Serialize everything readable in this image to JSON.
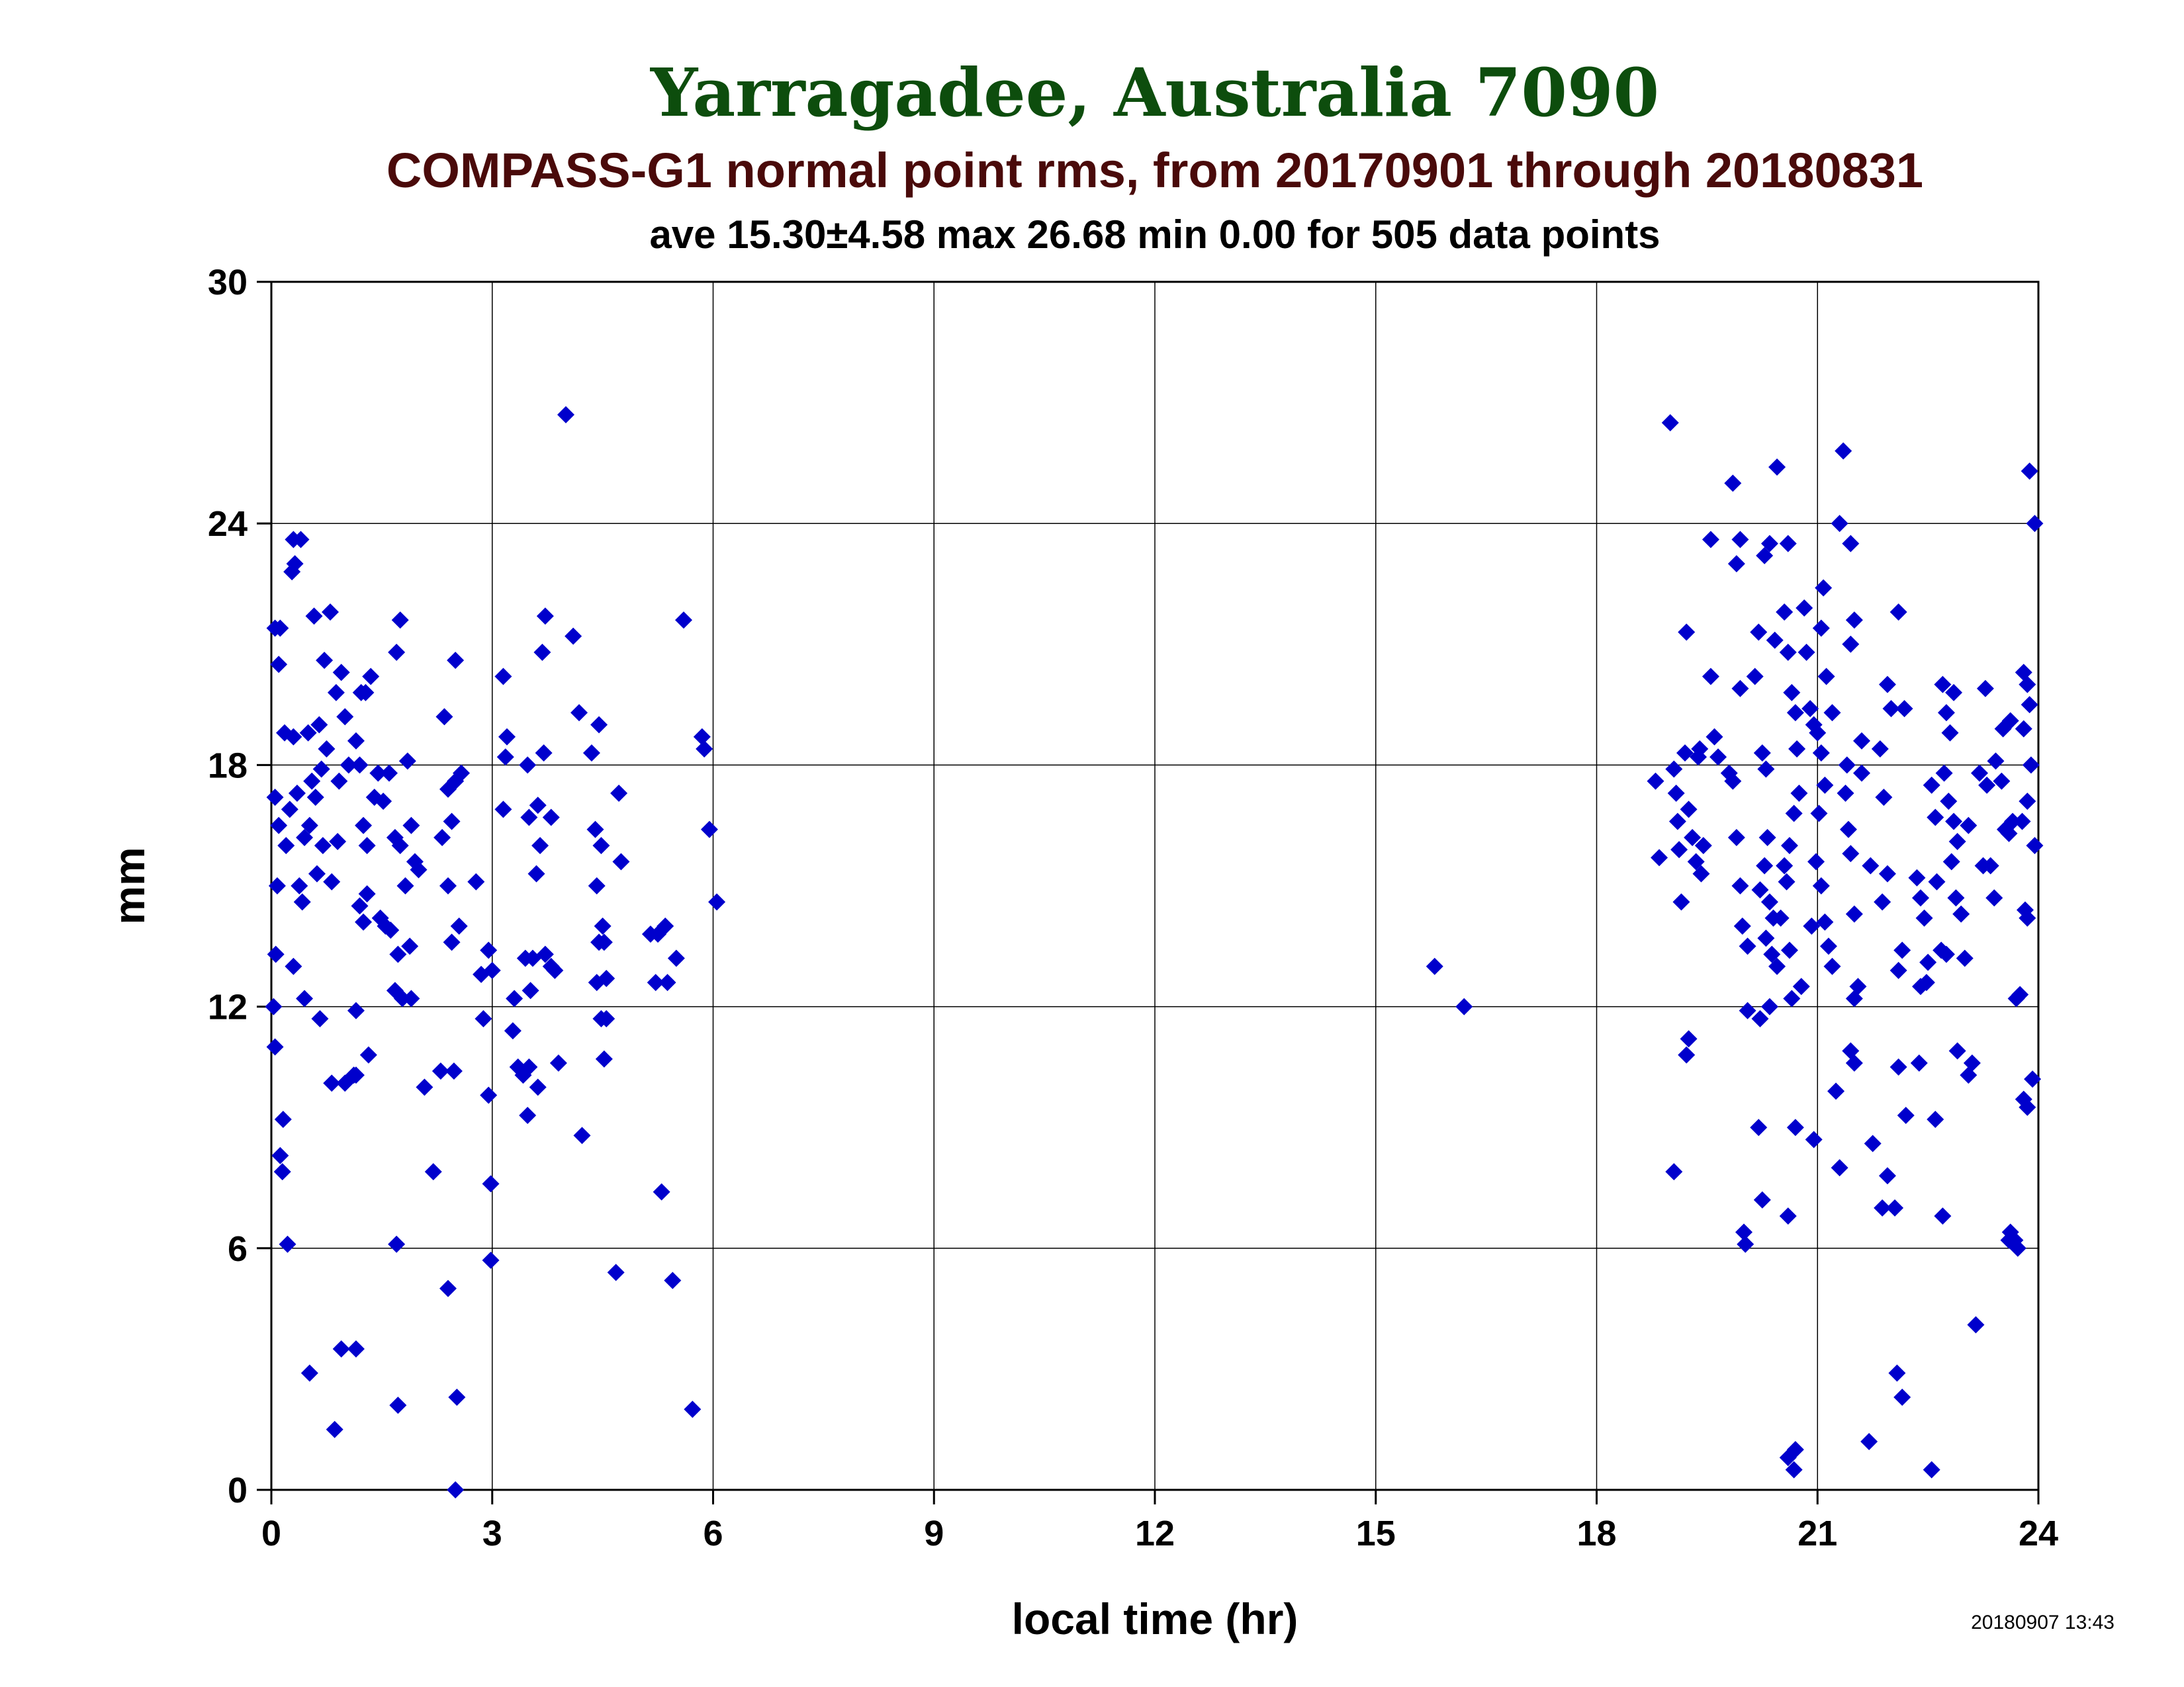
{
  "colors": {
    "title": "#0d4d0d",
    "subtitle": "#4a0a0a",
    "text": "#000000",
    "grid": "#000000",
    "marker": "#0000cc"
  },
  "chart_data": {
    "type": "scatter",
    "title": "Yarragadee, Australia 7090",
    "subtitle": "COMPASS-G1 normal point rms, from 20170901 through 20180831",
    "stats": "ave 15.30±4.58 max 26.68 min 0.00 for 505 data points",
    "xlabel": "local time (hr)",
    "ylabel": "mm",
    "timestamp": "20180907 13:43",
    "xlim": [
      0,
      24
    ],
    "ylim": [
      0,
      30
    ],
    "xticks": [
      "0",
      "3",
      "6",
      "9",
      "12",
      "15",
      "18",
      "21",
      "24"
    ],
    "yticks": [
      "0",
      "6",
      "12",
      "18",
      "24",
      "30"
    ],
    "grid": true,
    "marker": "diamond",
    "points": [
      [
        0.05,
        21.4
      ],
      [
        0.12,
        21.4
      ],
      [
        0.05,
        17.2
      ],
      [
        0.1,
        16.5
      ],
      [
        0.08,
        15.0
      ],
      [
        0.06,
        13.3
      ],
      [
        0.03,
        12.0
      ],
      [
        0.05,
        11.0
      ],
      [
        0.12,
        8.3
      ],
      [
        0.15,
        7.9
      ],
      [
        0.16,
        9.2
      ],
      [
        0.22,
        6.1
      ],
      [
        0.3,
        23.6
      ],
      [
        0.4,
        23.6
      ],
      [
        0.28,
        22.8
      ],
      [
        0.32,
        23.0
      ],
      [
        0.1,
        20.5
      ],
      [
        0.18,
        18.8
      ],
      [
        0.3,
        18.7
      ],
      [
        0.35,
        17.3
      ],
      [
        0.25,
        16.9
      ],
      [
        0.45,
        16.2
      ],
      [
        0.2,
        16.0
      ],
      [
        0.38,
        15.0
      ],
      [
        0.42,
        14.6
      ],
      [
        0.3,
        13.0
      ],
      [
        0.45,
        12.2
      ],
      [
        0.58,
        21.7
      ],
      [
        0.8,
        21.8
      ],
      [
        0.72,
        20.6
      ],
      [
        0.65,
        19.0
      ],
      [
        0.5,
        18.8
      ],
      [
        0.75,
        18.4
      ],
      [
        0.68,
        17.9
      ],
      [
        0.55,
        17.6
      ],
      [
        0.6,
        17.2
      ],
      [
        0.52,
        16.5
      ],
      [
        0.7,
        16.0
      ],
      [
        0.62,
        15.3
      ],
      [
        0.82,
        15.1
      ],
      [
        0.66,
        11.7
      ],
      [
        0.82,
        10.1
      ],
      [
        0.52,
        2.9
      ],
      [
        0.86,
        1.5
      ],
      [
        0.95,
        20.3
      ],
      [
        0.88,
        19.8
      ],
      [
        1.0,
        19.2
      ],
      [
        1.05,
        18.0
      ],
      [
        0.92,
        17.6
      ],
      [
        0.9,
        16.1
      ],
      [
        1.0,
        10.1
      ],
      [
        1.12,
        10.3
      ],
      [
        0.95,
        3.5
      ],
      [
        1.15,
        3.5
      ],
      [
        1.22,
        19.8
      ],
      [
        1.28,
        19.8
      ],
      [
        1.35,
        20.2
      ],
      [
        1.15,
        18.6
      ],
      [
        1.2,
        18.0
      ],
      [
        1.4,
        17.2
      ],
      [
        1.25,
        16.5
      ],
      [
        1.3,
        16.0
      ],
      [
        1.2,
        14.5
      ],
      [
        1.25,
        14.1
      ],
      [
        1.3,
        14.8
      ],
      [
        1.15,
        11.9
      ],
      [
        1.32,
        10.8
      ],
      [
        1.15,
        10.3
      ],
      [
        1.45,
        17.8
      ],
      [
        1.6,
        17.8
      ],
      [
        1.52,
        17.1
      ],
      [
        1.68,
        16.2
      ],
      [
        1.75,
        16.0
      ],
      [
        1.55,
        14.0
      ],
      [
        1.48,
        14.2
      ],
      [
        1.62,
        13.9
      ],
      [
        1.72,
        13.3
      ],
      [
        1.68,
        12.4
      ],
      [
        1.75,
        21.6
      ],
      [
        1.7,
        20.8
      ],
      [
        1.7,
        6.1
      ],
      [
        1.72,
        2.1
      ],
      [
        1.85,
        18.1
      ],
      [
        1.9,
        16.5
      ],
      [
        1.82,
        15.0
      ],
      [
        1.95,
        15.6
      ],
      [
        1.88,
        13.5
      ],
      [
        2.0,
        15.4
      ],
      [
        1.78,
        12.2
      ],
      [
        1.9,
        12.2
      ],
      [
        2.08,
        10.0
      ],
      [
        2.2,
        7.9
      ],
      [
        2.35,
        19.2
      ],
      [
        2.4,
        17.4
      ],
      [
        2.5,
        17.6
      ],
      [
        2.58,
        17.8
      ],
      [
        2.45,
        16.6
      ],
      [
        2.32,
        16.2
      ],
      [
        2.4,
        15.0
      ],
      [
        2.55,
        14.0
      ],
      [
        2.45,
        13.6
      ],
      [
        2.5,
        20.6
      ],
      [
        2.3,
        10.4
      ],
      [
        2.48,
        10.4
      ],
      [
        2.4,
        5.0
      ],
      [
        2.52,
        2.3
      ],
      [
        2.5,
        0.0
      ],
      [
        2.78,
        15.1
      ],
      [
        2.85,
        12.8
      ],
      [
        2.88,
        11.7
      ],
      [
        2.95,
        13.4
      ],
      [
        3.0,
        12.9
      ],
      [
        2.95,
        9.8
      ],
      [
        2.98,
        7.6
      ],
      [
        2.98,
        5.7
      ],
      [
        3.15,
        20.2
      ],
      [
        3.2,
        18.7
      ],
      [
        3.18,
        18.2
      ],
      [
        3.15,
        16.9
      ],
      [
        3.3,
        12.2
      ],
      [
        3.28,
        11.4
      ],
      [
        3.35,
        10.5
      ],
      [
        3.42,
        10.3
      ],
      [
        3.5,
        10.5
      ],
      [
        3.48,
        9.3
      ],
      [
        3.55,
        13.2
      ],
      [
        3.52,
        12.4
      ],
      [
        3.45,
        13.2
      ],
      [
        3.48,
        18.0
      ],
      [
        3.5,
        16.7
      ],
      [
        3.72,
        21.7
      ],
      [
        3.68,
        20.8
      ],
      [
        3.7,
        18.3
      ],
      [
        3.62,
        17.0
      ],
      [
        3.65,
        16.0
      ],
      [
        3.6,
        15.3
      ],
      [
        3.72,
        13.3
      ],
      [
        3.8,
        13.0
      ],
      [
        3.85,
        12.9
      ],
      [
        3.9,
        10.6
      ],
      [
        3.62,
        10.0
      ],
      [
        3.8,
        16.7
      ],
      [
        4.0,
        26.7
      ],
      [
        4.1,
        21.2
      ],
      [
        4.18,
        19.3
      ],
      [
        4.22,
        8.8
      ],
      [
        4.35,
        18.3
      ],
      [
        4.45,
        19.0
      ],
      [
        4.4,
        16.4
      ],
      [
        4.48,
        16.0
      ],
      [
        4.42,
        15.0
      ],
      [
        4.5,
        14.0
      ],
      [
        4.45,
        13.6
      ],
      [
        4.52,
        13.6
      ],
      [
        4.42,
        12.6
      ],
      [
        4.55,
        12.7
      ],
      [
        4.48,
        11.7
      ],
      [
        4.55,
        11.7
      ],
      [
        4.52,
        10.7
      ],
      [
        4.72,
        17.3
      ],
      [
        4.75,
        15.6
      ],
      [
        4.68,
        5.4
      ],
      [
        5.15,
        13.8
      ],
      [
        5.25,
        13.8
      ],
      [
        5.35,
        14.0
      ],
      [
        5.38,
        12.6
      ],
      [
        5.22,
        12.6
      ],
      [
        5.5,
        13.2
      ],
      [
        5.3,
        7.4
      ],
      [
        5.45,
        5.2
      ],
      [
        5.6,
        21.6
      ],
      [
        5.72,
        2.0
      ],
      [
        5.85,
        18.7
      ],
      [
        5.88,
        18.4
      ],
      [
        5.95,
        16.4
      ],
      [
        6.05,
        14.6
      ],
      [
        15.8,
        13.0
      ],
      [
        16.2,
        12.0
      ],
      [
        18.8,
        17.6
      ],
      [
        18.85,
        15.7
      ],
      [
        19.0,
        26.5
      ],
      [
        19.05,
        17.9
      ],
      [
        19.08,
        17.3
      ],
      [
        19.1,
        16.6
      ],
      [
        19.12,
        15.9
      ],
      [
        19.15,
        14.6
      ],
      [
        19.2,
        18.3
      ],
      [
        19.25,
        16.9
      ],
      [
        19.3,
        16.2
      ],
      [
        19.35,
        15.6
      ],
      [
        19.22,
        21.3
      ],
      [
        19.4,
        18.4
      ],
      [
        19.38,
        18.2
      ],
      [
        19.45,
        16.0
      ],
      [
        19.42,
        15.3
      ],
      [
        19.25,
        11.2
      ],
      [
        19.22,
        10.8
      ],
      [
        19.05,
        7.9
      ],
      [
        19.55,
        20.2
      ],
      [
        19.6,
        18.7
      ],
      [
        19.65,
        18.2
      ],
      [
        19.8,
        17.8
      ],
      [
        19.85,
        17.6
      ],
      [
        19.9,
        16.2
      ],
      [
        19.95,
        15.0
      ],
      [
        19.98,
        14.0
      ],
      [
        20.05,
        13.5
      ],
      [
        19.55,
        23.6
      ],
      [
        19.85,
        25.0
      ],
      [
        19.9,
        23.0
      ],
      [
        19.95,
        23.6
      ],
      [
        19.95,
        19.9
      ],
      [
        20.0,
        6.4
      ],
      [
        20.02,
        6.1
      ],
      [
        20.05,
        11.9
      ],
      [
        20.15,
        20.2
      ],
      [
        20.2,
        21.3
      ],
      [
        20.25,
        18.3
      ],
      [
        20.3,
        17.9
      ],
      [
        20.32,
        16.2
      ],
      [
        20.28,
        15.5
      ],
      [
        20.22,
        14.9
      ],
      [
        20.35,
        14.6
      ],
      [
        20.4,
        14.2
      ],
      [
        20.3,
        13.7
      ],
      [
        20.38,
        13.3
      ],
      [
        20.45,
        13.0
      ],
      [
        20.35,
        12.0
      ],
      [
        20.22,
        11.7
      ],
      [
        20.28,
        23.2
      ],
      [
        20.35,
        23.5
      ],
      [
        20.2,
        9.0
      ],
      [
        20.25,
        7.2
      ],
      [
        20.42,
        21.1
      ],
      [
        20.55,
        21.8
      ],
      [
        20.45,
        25.4
      ],
      [
        20.6,
        20.8
      ],
      [
        20.6,
        23.5
      ],
      [
        20.65,
        19.8
      ],
      [
        20.7,
        19.3
      ],
      [
        20.72,
        18.4
      ],
      [
        20.75,
        17.3
      ],
      [
        20.68,
        16.8
      ],
      [
        20.62,
        16.0
      ],
      [
        20.55,
        15.5
      ],
      [
        20.58,
        15.1
      ],
      [
        20.5,
        14.2
      ],
      [
        20.62,
        13.4
      ],
      [
        20.65,
        12.2
      ],
      [
        20.78,
        12.5
      ],
      [
        20.7,
        9.0
      ],
      [
        20.6,
        6.8
      ],
      [
        20.6,
        0.8
      ],
      [
        20.7,
        1.0
      ],
      [
        20.68,
        0.5
      ],
      [
        20.82,
        21.9
      ],
      [
        20.85,
        20.8
      ],
      [
        20.9,
        19.4
      ],
      [
        20.95,
        19.0
      ],
      [
        21.0,
        18.8
      ],
      [
        21.05,
        18.3
      ],
      [
        21.1,
        17.5
      ],
      [
        21.02,
        16.8
      ],
      [
        20.98,
        15.6
      ],
      [
        21.05,
        15.0
      ],
      [
        20.92,
        14.0
      ],
      [
        21.1,
        14.1
      ],
      [
        21.15,
        13.5
      ],
      [
        21.2,
        13.0
      ],
      [
        21.12,
        20.2
      ],
      [
        21.08,
        22.4
      ],
      [
        21.05,
        21.4
      ],
      [
        21.2,
        19.3
      ],
      [
        20.95,
        8.7
      ],
      [
        21.25,
        9.9
      ],
      [
        21.3,
        8.0
      ],
      [
        21.35,
        25.8
      ],
      [
        21.3,
        24.0
      ],
      [
        21.45,
        23.5
      ],
      [
        21.4,
        18.0
      ],
      [
        21.38,
        17.3
      ],
      [
        21.42,
        16.4
      ],
      [
        21.45,
        15.8
      ],
      [
        21.5,
        14.3
      ],
      [
        21.55,
        12.5
      ],
      [
        21.5,
        12.2
      ],
      [
        21.45,
        10.9
      ],
      [
        21.5,
        10.6
      ],
      [
        21.5,
        21.6
      ],
      [
        21.45,
        21.0
      ],
      [
        21.6,
        18.6
      ],
      [
        21.6,
        17.8
      ],
      [
        21.72,
        15.5
      ],
      [
        21.75,
        8.6
      ],
      [
        21.7,
        1.2
      ],
      [
        21.85,
        18.4
      ],
      [
        21.9,
        17.2
      ],
      [
        21.95,
        15.3
      ],
      [
        21.88,
        14.6
      ],
      [
        22.0,
        19.4
      ],
      [
        21.95,
        20.0
      ],
      [
        21.88,
        7.0
      ],
      [
        21.95,
        7.8
      ],
      [
        22.05,
        7.0
      ],
      [
        22.1,
        12.9
      ],
      [
        22.15,
        13.4
      ],
      [
        22.1,
        10.5
      ],
      [
        22.2,
        9.3
      ],
      [
        22.1,
        21.8
      ],
      [
        22.18,
        19.4
      ],
      [
        22.08,
        2.9
      ],
      [
        22.15,
        2.3
      ],
      [
        22.35,
        15.2
      ],
      [
        22.4,
        14.7
      ],
      [
        22.45,
        14.2
      ],
      [
        22.5,
        13.1
      ],
      [
        22.48,
        12.6
      ],
      [
        22.4,
        12.5
      ],
      [
        22.55,
        17.5
      ],
      [
        22.6,
        16.7
      ],
      [
        22.62,
        15.1
      ],
      [
        22.38,
        10.6
      ],
      [
        22.6,
        9.2
      ],
      [
        22.55,
        0.5
      ],
      [
        22.7,
        20.0
      ],
      [
        22.75,
        19.3
      ],
      [
        22.8,
        18.8
      ],
      [
        22.72,
        17.8
      ],
      [
        22.78,
        17.1
      ],
      [
        22.85,
        16.6
      ],
      [
        22.9,
        16.1
      ],
      [
        22.82,
        15.6
      ],
      [
        22.88,
        14.7
      ],
      [
        22.95,
        14.3
      ],
      [
        22.68,
        13.4
      ],
      [
        22.75,
        13.3
      ],
      [
        22.85,
        19.8
      ],
      [
        22.9,
        10.9
      ],
      [
        22.7,
        6.8
      ],
      [
        23.0,
        13.2
      ],
      [
        23.05,
        16.5
      ],
      [
        23.05,
        10.3
      ],
      [
        23.1,
        10.6
      ],
      [
        23.15,
        4.1
      ],
      [
        23.2,
        17.8
      ],
      [
        23.3,
        17.5
      ],
      [
        23.28,
        19.9
      ],
      [
        23.25,
        15.5
      ],
      [
        23.35,
        15.5
      ],
      [
        23.4,
        14.7
      ],
      [
        23.42,
        18.1
      ],
      [
        23.5,
        17.6
      ],
      [
        23.52,
        18.9
      ],
      [
        23.55,
        16.4
      ],
      [
        23.6,
        16.3
      ],
      [
        23.62,
        19.1
      ],
      [
        23.65,
        16.6
      ],
      [
        23.7,
        12.2
      ],
      [
        23.75,
        12.3
      ],
      [
        23.6,
        6.2
      ],
      [
        23.62,
        6.4
      ],
      [
        23.68,
        6.2
      ],
      [
        23.72,
        6.0
      ],
      [
        23.8,
        20.3
      ],
      [
        23.85,
        20.0
      ],
      [
        23.88,
        19.5
      ],
      [
        23.8,
        18.9
      ],
      [
        23.85,
        17.1
      ],
      [
        23.78,
        16.6
      ],
      [
        23.82,
        14.4
      ],
      [
        23.85,
        14.2
      ],
      [
        23.9,
        18.0
      ],
      [
        23.95,
        16.0
      ],
      [
        23.8,
        9.7
      ],
      [
        23.85,
        9.5
      ],
      [
        23.88,
        25.3
      ],
      [
        23.95,
        24.0
      ],
      [
        23.92,
        10.2
      ]
    ]
  }
}
